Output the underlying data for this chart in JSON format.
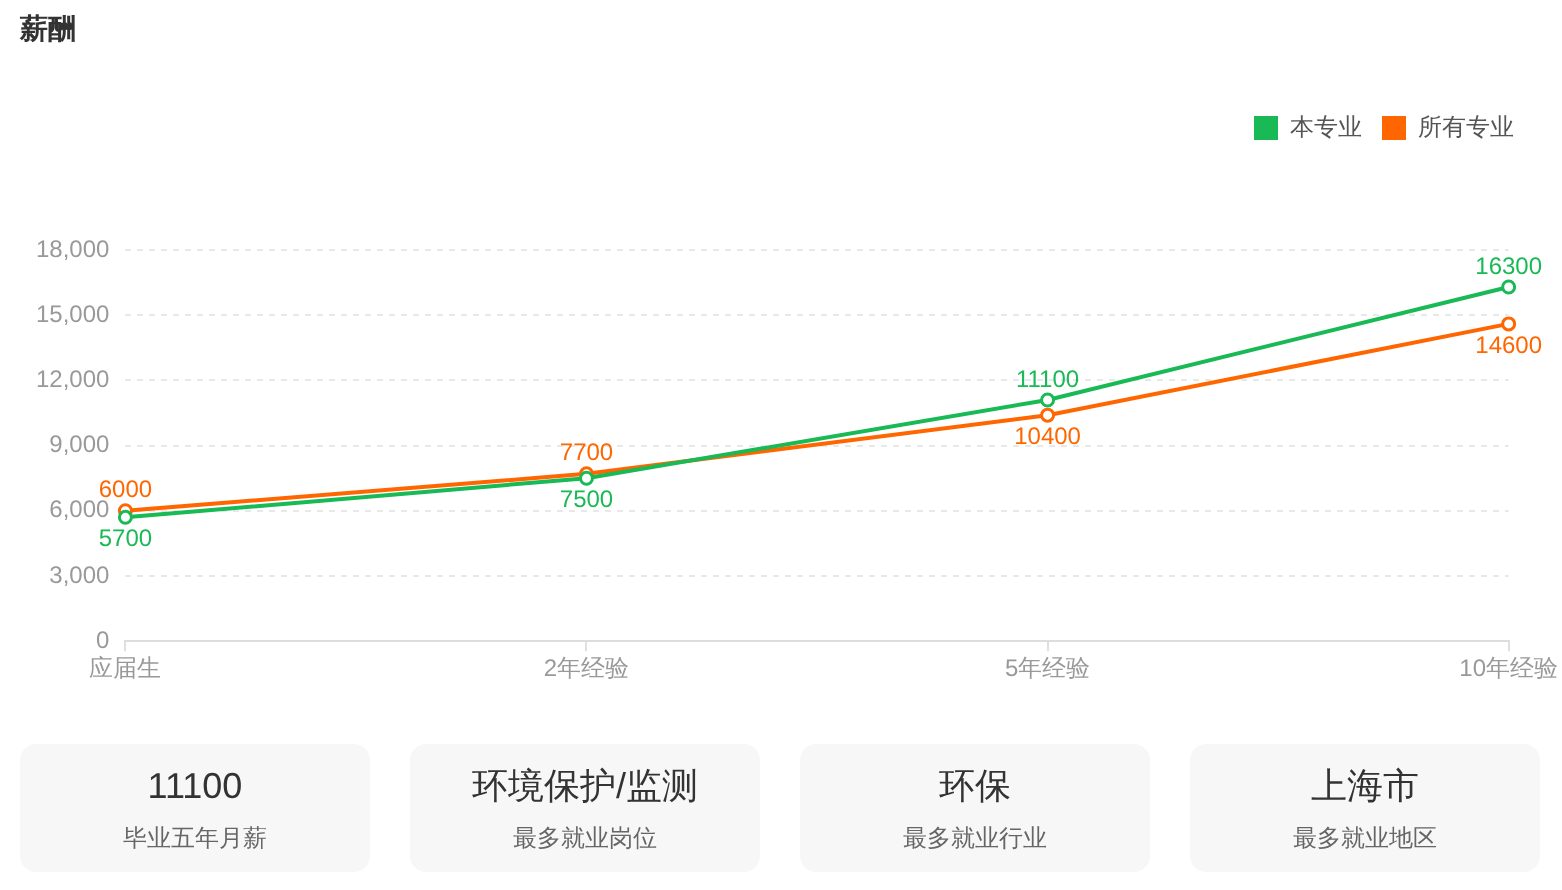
{
  "chart_data": [
    {
      "type": "line",
      "title": "薪酬",
      "categories": [
        "应届生",
        "2年经验",
        "5年经验",
        "10年经验"
      ],
      "series": [
        {
          "name": "本专业",
          "color": "#19b955",
          "values": [
            5700,
            7500,
            11100,
            16300
          ]
        },
        {
          "name": "所有专业",
          "color": "#ff6600",
          "values": [
            6000,
            7700,
            10400,
            14600
          ]
        }
      ],
      "ylim": [
        0,
        18000
      ],
      "yticks": [
        {
          "value": 0,
          "label": "0"
        },
        {
          "value": 3000,
          "label": "3,000"
        },
        {
          "value": 6000,
          "label": "6,000"
        },
        {
          "value": 9000,
          "label": "9,000"
        },
        {
          "value": 12000,
          "label": "12,000"
        },
        {
          "value": 15000,
          "label": "15,000"
        },
        {
          "value": 18000,
          "label": "18,000"
        }
      ],
      "grid": "y",
      "legend": "top right",
      "marker": "circle",
      "line_style": "solid",
      "data_labels": true
    },
    {
      "type": "other",
      "annotations": [
        "11100",
        "毕业五年月薪",
        "环境保护/监测",
        "最多就业岗位",
        "环保",
        "最多就业行业",
        "上海市",
        "最多就业地区"
      ]
    }
  ]
}
